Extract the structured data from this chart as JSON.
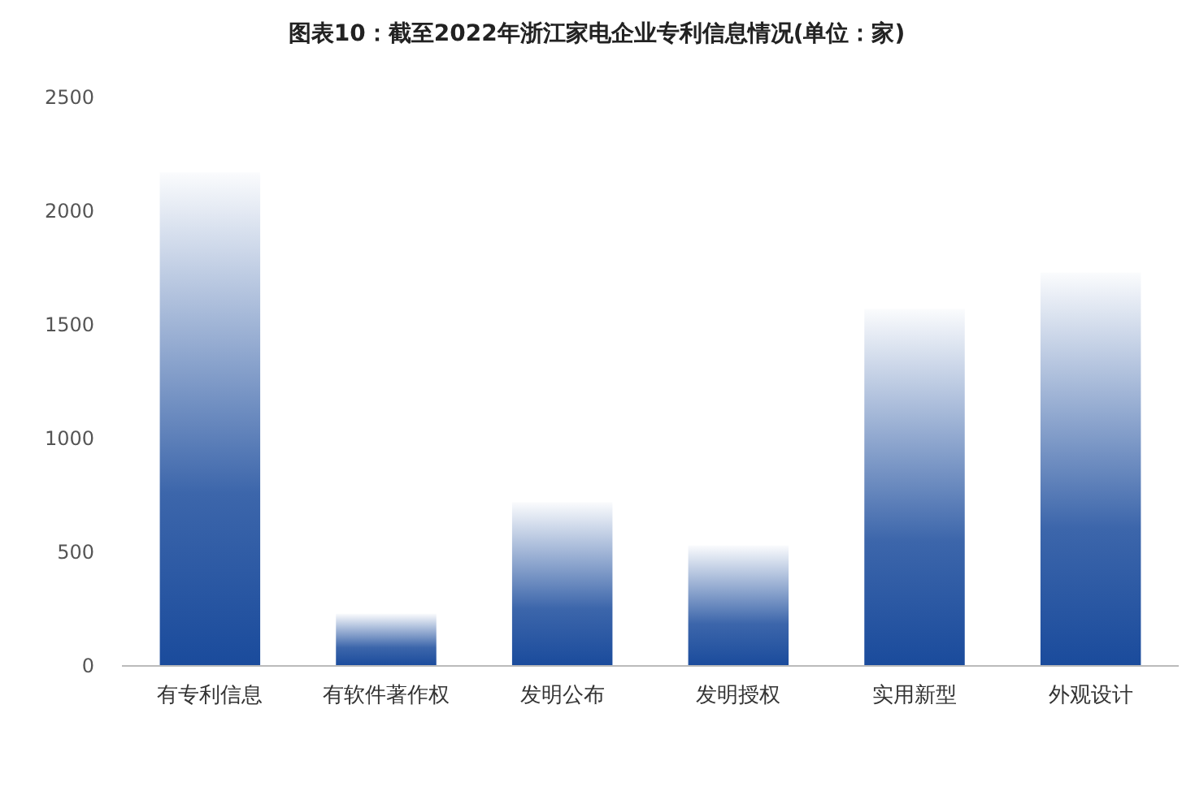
{
  "chart_data": {
    "type": "bar",
    "title": "图表10：截至2022年浙江家电企业专利信息情况(单位：家)",
    "categories": [
      "有专利信息",
      "有软件著作权",
      "发明公布",
      "发明授权",
      "实用新型",
      "外观设计"
    ],
    "values": [
      2170,
      230,
      720,
      530,
      1570,
      1730
    ],
    "color": "#1a4b9c",
    "ylim": [
      0,
      2500
    ],
    "yticks": [
      0,
      500,
      1000,
      1500,
      2000,
      2500
    ]
  }
}
